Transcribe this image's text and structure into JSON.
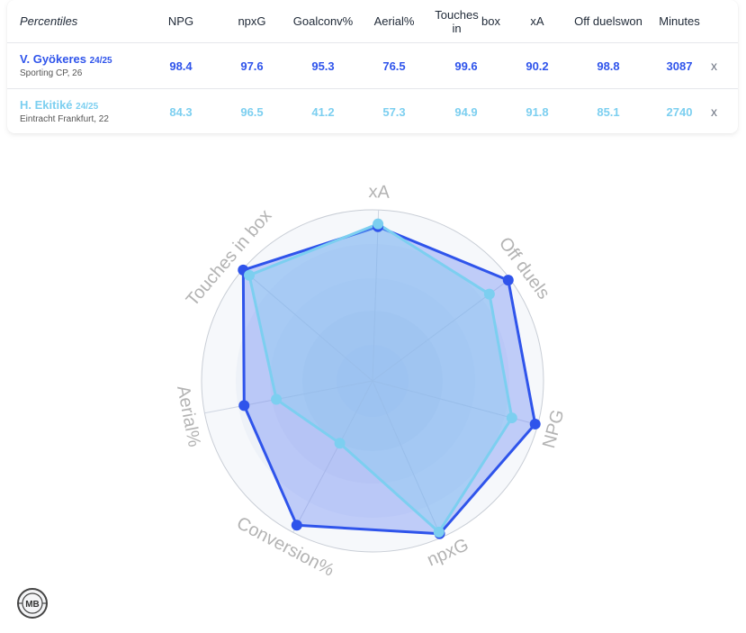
{
  "table": {
    "corner_label": "Percentiles",
    "columns": [
      {
        "line1": "NPG",
        "line2": ""
      },
      {
        "line1": "npxG",
        "line2": ""
      },
      {
        "line1": "Goal",
        "line2": "conv%"
      },
      {
        "line1": "Aerial%",
        "line2": ""
      },
      {
        "line1": "Touches in",
        "line2": "box"
      },
      {
        "line1": "xA",
        "line2": ""
      },
      {
        "line1": "Off duels",
        "line2": "won"
      },
      {
        "line1": "Minutes",
        "line2": ""
      }
    ],
    "players": [
      {
        "name": "V. Gyökeres",
        "season": "24/25",
        "team": "Sporting CP, 26",
        "values": [
          "98.4",
          "97.6",
          "95.3",
          "76.5",
          "99.6",
          "90.2",
          "98.8",
          "3087"
        ],
        "remove": "x",
        "color": "#2f54eb"
      },
      {
        "name": "H. Ekitiké",
        "season": "24/25",
        "team": "Eintracht Frankfurt, 22",
        "values": [
          "84.3",
          "96.5",
          "41.2",
          "57.3",
          "94.9",
          "91.8",
          "85.1",
          "2740"
        ],
        "remove": "x",
        "color": "#7ccff0"
      }
    ]
  },
  "chart_data": {
    "type": "radar",
    "axes": [
      "xA",
      "Off duels",
      "NPG",
      "npxG",
      "Conversion%",
      "Aerial%",
      "Touches in box"
    ],
    "range": [
      0,
      100
    ],
    "series": [
      {
        "name": "V. Gyökeres",
        "values": [
          90.2,
          98.8,
          98.4,
          97.6,
          95.3,
          76.5,
          99.6
        ],
        "color": "#2f54eb"
      },
      {
        "name": "H. Ekitiké",
        "values": [
          91.8,
          85.1,
          84.3,
          96.5,
          41.2,
          57.3,
          94.9
        ],
        "color": "#7ccff0"
      }
    ]
  },
  "logo": {
    "text": "MB"
  }
}
